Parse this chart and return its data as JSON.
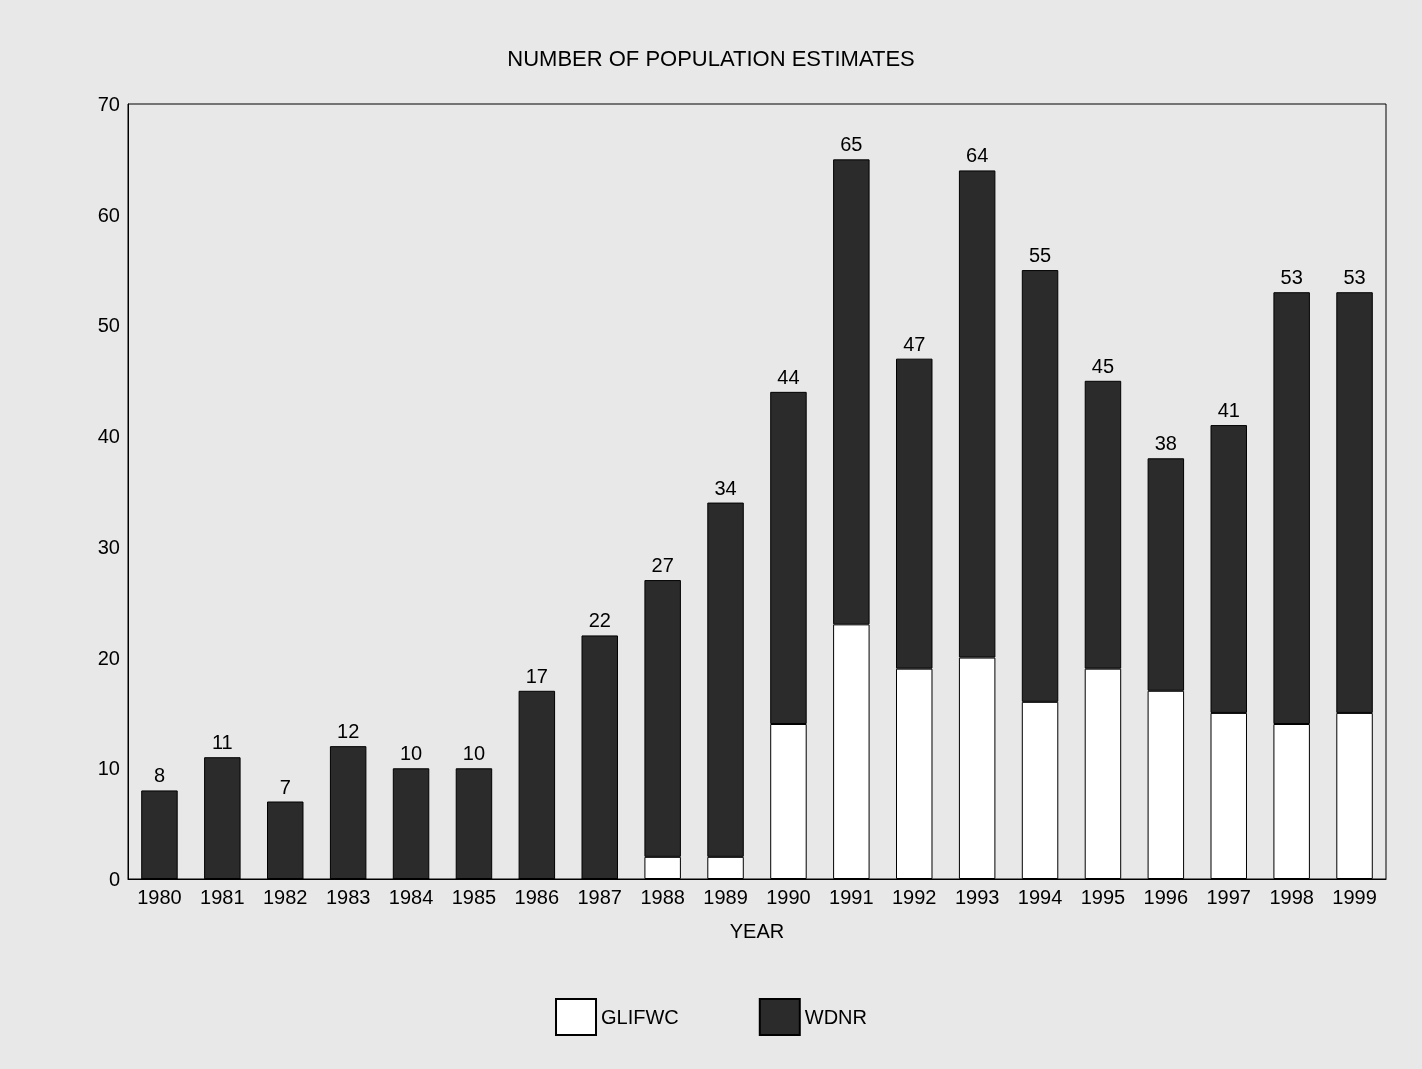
{
  "chart_data": {
    "type": "bar",
    "title": "NUMBER OF POPULATION ESTIMATES",
    "xlabel": "YEAR",
    "categories": [
      "1980",
      "1981",
      "1982",
      "1983",
      "1984",
      "1985",
      "1986",
      "1987",
      "1988",
      "1989",
      "1990",
      "1991",
      "1992",
      "1993",
      "1994",
      "1995",
      "1996",
      "1997",
      "1998",
      "1999"
    ],
    "series": [
      {
        "name": "GLIFWC",
        "color": "#ffffff",
        "values": [
          0,
          0,
          0,
          0,
          0,
          0,
          0,
          0,
          2,
          2,
          14,
          23,
          19,
          20,
          16,
          19,
          17,
          15,
          14,
          15
        ]
      },
      {
        "name": "WDNR",
        "color": "#2b2b2b",
        "values": [
          8,
          11,
          7,
          12,
          10,
          10,
          17,
          22,
          25,
          32,
          30,
          42,
          28,
          44,
          39,
          26,
          21,
          26,
          39,
          38
        ]
      }
    ],
    "stacked": true,
    "totals": [
      "8",
      "11",
      "7",
      "12",
      "10",
      "10",
      "17",
      "22",
      "27",
      "34",
      "44",
      "65",
      "47",
      "64",
      "55",
      "45",
      "38",
      "41",
      "53",
      "53"
    ],
    "ylim": [
      0,
      70
    ],
    "yticks": [
      0,
      10,
      20,
      30,
      40,
      50,
      60,
      70
    ],
    "grid": false,
    "legend": "bottom"
  }
}
